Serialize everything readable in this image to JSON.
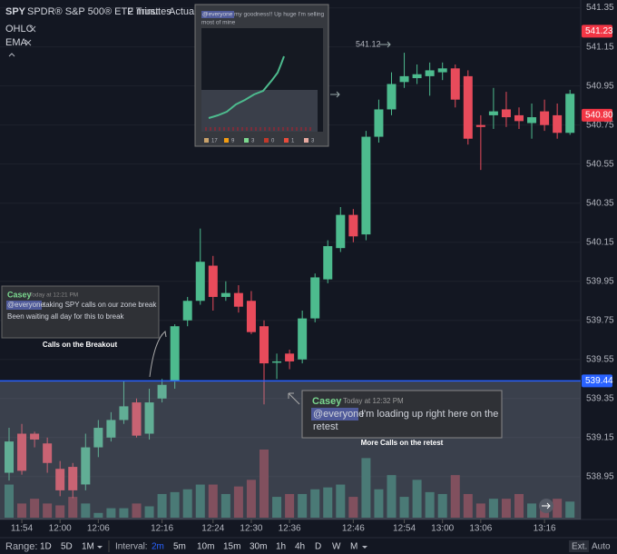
{
  "chart_data": {
    "type": "candlestick",
    "categories": [
      null,
      "11:54",
      null,
      null,
      "12:00",
      null,
      null,
      "12:06",
      null,
      null,
      null,
      null,
      "12:16",
      null,
      null,
      null,
      "12:24",
      null,
      null,
      "12:30",
      null,
      null,
      "12:36",
      null,
      null,
      null,
      null,
      "12:46",
      null,
      null,
      null,
      "12:54",
      null,
      null,
      "13:00",
      null,
      null,
      "13:06",
      null,
      null,
      null,
      null,
      "13:16",
      null,
      null
    ],
    "open": [
      538.97,
      539.17,
      539.17,
      539.12,
      538.99,
      539.0,
      538.91,
      539.1,
      539.15,
      539.24,
      539.33,
      539.17,
      539.35,
      539.44,
      539.75,
      539.85,
      540.03,
      539.87,
      539.89,
      539.85,
      539.72,
      539.54,
      539.58,
      539.55,
      539.76,
      539.96,
      540.12,
      540.29,
      540.19,
      540.69,
      540.83,
      540.97,
      540.99,
      541.0,
      541.02,
      541.04,
      541.0,
      540.75,
      540.8,
      540.83,
      540.8,
      540.76,
      540.82,
      540.8,
      540.71
    ],
    "high": [
      539.2,
      539.22,
      539.18,
      539.15,
      539.03,
      539.02,
      539.17,
      539.24,
      539.28,
      539.44,
      539.35,
      539.4,
      539.45,
      539.73,
      539.87,
      540.22,
      540.08,
      539.95,
      539.93,
      539.9,
      539.75,
      539.58,
      539.6,
      539.8,
      539.99,
      540.16,
      540.33,
      540.32,
      540.72,
      540.88,
      541.02,
      541.12,
      541.06,
      541.07,
      541.07,
      541.06,
      541.03,
      540.8,
      540.94,
      540.92,
      540.84,
      540.86,
      540.88,
      540.86,
      540.93
    ],
    "low": [
      538.93,
      538.96,
      539.1,
      538.97,
      538.85,
      538.84,
      538.88,
      539.05,
      539.13,
      539.22,
      539.15,
      539.14,
      539.33,
      539.4,
      539.72,
      539.83,
      539.8,
      539.85,
      539.79,
      539.68,
      539.32,
      539.45,
      539.5,
      539.53,
      539.74,
      539.94,
      540.1,
      540.15,
      540.16,
      540.66,
      540.8,
      540.94,
      540.96,
      540.9,
      540.98,
      540.84,
      540.65,
      540.52,
      540.73,
      540.74,
      540.73,
      540.68,
      540.72,
      540.68,
      540.7
    ],
    "close": [
      539.13,
      538.98,
      539.14,
      539.02,
      538.88,
      538.88,
      539.1,
      539.2,
      539.24,
      539.31,
      539.16,
      539.33,
      539.42,
      539.72,
      539.85,
      540.05,
      539.87,
      539.89,
      539.82,
      539.69,
      539.53,
      539.54,
      539.54,
      539.76,
      539.97,
      540.13,
      540.29,
      540.18,
      540.69,
      540.83,
      540.96,
      541.0,
      541.01,
      541.03,
      541.04,
      540.88,
      540.68,
      540.74,
      540.82,
      540.79,
      540.77,
      540.79,
      540.75,
      540.71,
      540.91
    ],
    "volume": [
      35,
      15,
      20,
      15,
      13,
      22,
      15,
      5,
      10,
      10,
      15,
      12,
      25,
      27,
      30,
      35,
      35,
      25,
      33,
      40,
      72,
      22,
      25,
      25,
      30,
      32,
      35,
      22,
      63,
      30,
      45,
      22,
      40,
      27,
      25,
      45,
      25,
      15,
      20,
      20,
      25,
      15,
      15,
      20,
      17
    ],
    "up_color": "#4dbb8e",
    "down_color": "#e84b5b",
    "ylim": [
      538.74,
      541.39
    ],
    "yticks": [
      538.95,
      539.15,
      539.35,
      539.55,
      539.75,
      539.95,
      540.15,
      540.35,
      540.55,
      540.75,
      540.95,
      541.15,
      541.35
    ],
    "price_tags": [
      {
        "value": 541.23,
        "label": "541.23",
        "color": "#f23645"
      },
      {
        "value": 540.8,
        "label": "540.80",
        "color": "#f23645"
      },
      {
        "value": 539.44,
        "label": "539.44",
        "color": "#2962ff"
      }
    ]
  },
  "header": {
    "symbol": "SPY",
    "name": "SPDR® S&P 500® ETF Trust",
    "interval": "2 minutes",
    "mode": "Actual"
  },
  "indicators": [
    "OHLC",
    "EMA"
  ],
  "annotations": [
    {
      "author": "Casey",
      "time": "Today at 12:21 PM",
      "mention": "@everyone",
      "text": "taking SPY calls on our zone break",
      "text2": "Been waiting all day for this to break",
      "caption": "Calls on the Breakout"
    },
    {
      "author": "Casey",
      "time": "Today at 12:32 PM",
      "mention": "@everyone",
      "text": "I'm loading up right here on the",
      "text2": "retest",
      "caption": "More Calls on the retest"
    }
  ],
  "inset": {
    "mention": "@everyone",
    "text": "my goodness!! Up huge I'm selling",
    "text2": "most of mine",
    "level": "541.12",
    "reactions": [
      17,
      9,
      3,
      0,
      1,
      3
    ]
  },
  "footer": {
    "range_label": "Range:",
    "ranges": [
      "1D",
      "5D",
      "1M"
    ],
    "interval_label": "Interval:",
    "intervals": [
      "2m",
      "5m",
      "10m",
      "15m",
      "30m",
      "1h",
      "4h",
      "D",
      "W",
      "M"
    ],
    "ext": "Ext.",
    "auto": "Auto"
  }
}
